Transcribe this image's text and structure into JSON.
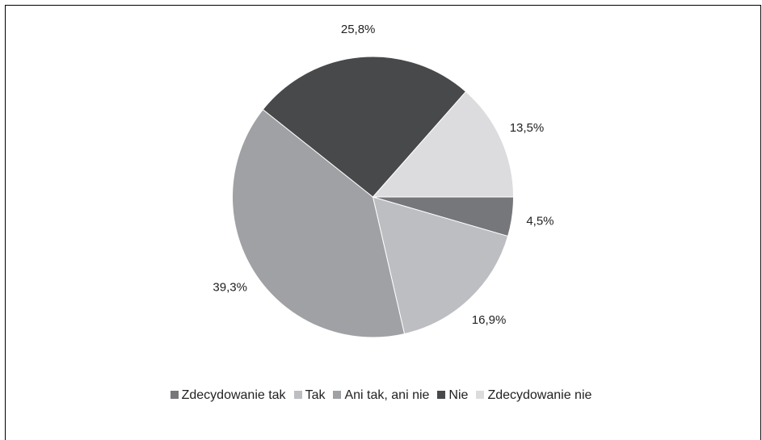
{
  "chart_data": {
    "type": "pie",
    "categories": [
      "Zdecydowanie tak",
      "Tak",
      "Ani tak, ani nie",
      "Nie",
      "Zdecydowanie nie"
    ],
    "values": [
      4.5,
      16.9,
      39.3,
      25.8,
      13.5
    ],
    "labels": [
      "4,5%",
      "16,9%",
      "39,3%",
      "25,8%",
      "13,5%"
    ],
    "colors": [
      "#76777a",
      "#bdbec1",
      "#a0a1a4",
      "#48494b",
      "#dcdcde"
    ],
    "legend_position": "bottom",
    "start_angle": "3 o'clock",
    "direction": "clockwise"
  }
}
